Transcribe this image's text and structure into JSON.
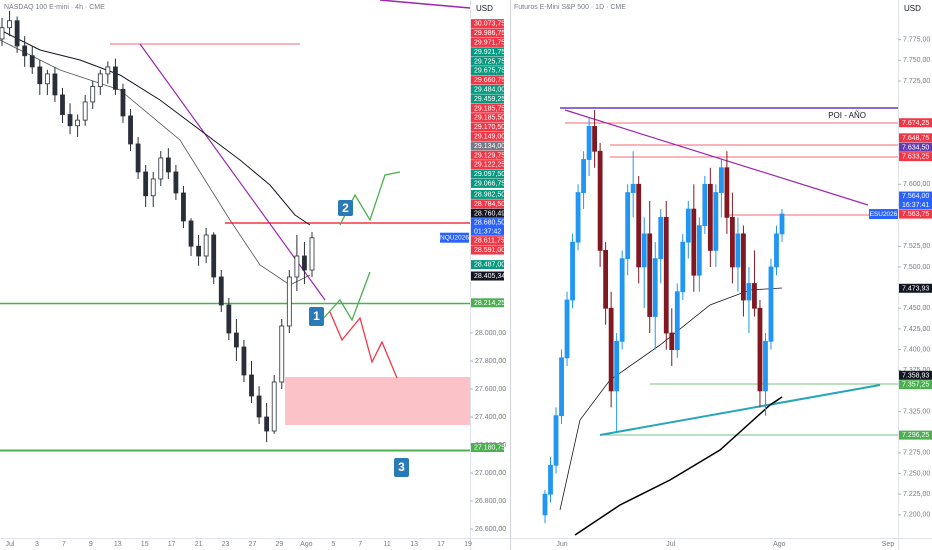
{
  "panels": [
    {
      "header": "NASDAQ 100 E-mini · 4h · CME",
      "currency": "USD",
      "ylim": [
        26536,
        30378
      ],
      "yticks": [
        {
          "value": 28000,
          "label": "28.000,00"
        },
        {
          "value": 27800,
          "label": "27.800,00"
        },
        {
          "value": 27600,
          "label": "27.600,00"
        },
        {
          "value": 27400,
          "label": "27.400,00"
        },
        {
          "value": 27200,
          "label": "27.200,00"
        },
        {
          "value": 27000,
          "label": "27.000,00"
        },
        {
          "value": 26800,
          "label": "26.800,00"
        },
        {
          "value": 26600,
          "label": "26.600,00"
        }
      ],
      "dates": [
        "Jul",
        "3",
        "7",
        "9",
        "13",
        "15",
        "17",
        "21",
        "23",
        "27",
        "29",
        "Ago",
        "5",
        "7",
        "11",
        "13",
        "17",
        "19"
      ],
      "candles": [
        [
          30100,
          30250,
          30050,
          30180
        ],
        [
          30180,
          30300,
          30120,
          30230
        ],
        [
          30230,
          30260,
          30000,
          30050
        ],
        [
          30050,
          30120,
          29900,
          29980
        ],
        [
          29980,
          30050,
          29850,
          29900
        ],
        [
          29900,
          29950,
          29700,
          29780
        ],
        [
          29780,
          29880,
          29700,
          29850
        ],
        [
          29850,
          29900,
          29650,
          29700
        ],
        [
          29700,
          29750,
          29500,
          29560
        ],
        [
          29560,
          29640,
          29420,
          29480
        ],
        [
          29480,
          29560,
          29400,
          29520
        ],
        [
          29520,
          29700,
          29480,
          29650
        ],
        [
          29650,
          29800,
          29600,
          29760
        ],
        [
          29760,
          29880,
          29700,
          29850
        ],
        [
          29850,
          29940,
          29780,
          29900
        ],
        [
          29900,
          29960,
          29700,
          29740
        ],
        [
          29740,
          29780,
          29500,
          29550
        ],
        [
          29550,
          29600,
          29300,
          29350
        ],
        [
          29350,
          29400,
          29100,
          29150
        ],
        [
          29150,
          29200,
          28900,
          28980
        ],
        [
          28980,
          29150,
          28900,
          29100
        ],
        [
          29100,
          29300,
          29050,
          29250
        ],
        [
          29250,
          29320,
          29100,
          29150
        ],
        [
          29150,
          29200,
          28950,
          29000
        ],
        [
          29000,
          29050,
          28750,
          28800
        ],
        [
          28800,
          28820,
          28550,
          28620
        ],
        [
          28620,
          28700,
          28480,
          28550
        ],
        [
          28550,
          28750,
          28500,
          28700
        ],
        [
          28700,
          28720,
          28350,
          28400
        ],
        [
          28400,
          28450,
          28150,
          28200
        ],
        [
          28200,
          28250,
          27950,
          28000
        ],
        [
          28000,
          28100,
          27800,
          27900
        ],
        [
          27900,
          27950,
          27650,
          27700
        ],
        [
          27700,
          27800,
          27500,
          27550
        ],
        [
          27550,
          27620,
          27350,
          27400
        ],
        [
          27400,
          27500,
          27220,
          27300
        ],
        [
          27300,
          27700,
          27280,
          27650
        ],
        [
          27650,
          28100,
          27600,
          28050
        ],
        [
          28050,
          28450,
          28000,
          28400
        ],
        [
          28400,
          28700,
          28300,
          28550
        ],
        [
          28550,
          28650,
          28350,
          28450
        ],
        [
          28450,
          28720,
          28400,
          28680
        ]
      ],
      "up_color": "#2a2e39",
      "down_color": "#2a2e39",
      "price_labels": [
        {
          "value": 30073.75,
          "label": "30.073,75",
          "color": "#f23645"
        },
        {
          "value": 29986.75,
          "label": "29.986,75",
          "color": "#f23645"
        },
        {
          "value": 29971.75,
          "label": "29.971,75",
          "color": "#f23645"
        },
        {
          "value": 29921.75,
          "label": "29.921,75",
          "color": "#089981"
        },
        {
          "value": 29725.75,
          "label": "29.725,75",
          "color": "#089981"
        },
        {
          "value": 29675.75,
          "label": "29.675,75",
          "color": "#089981"
        },
        {
          "value": 29660.75,
          "label": "29.660,75",
          "color": "#f23645"
        },
        {
          "value": 29484,
          "label": "29.484,00",
          "color": "#089981"
        },
        {
          "value": 29459.25,
          "label": "29.459,25",
          "color": "#089981"
        },
        {
          "value": 29185.75,
          "label": "29.185,75",
          "color": "#f23645"
        },
        {
          "value": 29185.5,
          "label": "29.185,50",
          "color": "#f23645"
        },
        {
          "value": 29170.5,
          "label": "29.170,50",
          "color": "#f23645"
        },
        {
          "value": 29149,
          "label": "29.149,00",
          "color": "#f23645"
        },
        {
          "value": 29134,
          "label": "29.134,00",
          "color": "#787b86"
        },
        {
          "value": 29129.75,
          "label": "29.129,75",
          "color": "#f23645"
        },
        {
          "value": 29122.25,
          "label": "29.122,25",
          "color": "#f23645"
        },
        {
          "value": 29097.5,
          "label": "29.097,50",
          "color": "#089981"
        },
        {
          "value": 29066.75,
          "label": "29.066,75",
          "color": "#089981"
        },
        {
          "value": 28982.5,
          "label": "28.982,50",
          "color": "#089981"
        },
        {
          "value": 28784.5,
          "label": "28.784,50",
          "color": "#f23645"
        },
        {
          "value": 28760.49,
          "label": "28.760,49",
          "color": "#131722"
        },
        {
          "value": 28680.5,
          "label": "28.680,50",
          "color": "#2962ff",
          "name": "NQU2026",
          "timer": "01:37:42"
        },
        {
          "value": 28611.75,
          "label": "28.611,75",
          "color": "#f23645"
        },
        {
          "value": 28591,
          "label": "28.591,00",
          "color": "#f23645"
        },
        {
          "value": 28487,
          "label": "28.487,00",
          "color": "#089981"
        },
        {
          "value": 28405.34,
          "label": "28.405,34",
          "color": "#131722"
        },
        {
          "value": 28214.25,
          "label": "28.214,25",
          "color": "#4caf50"
        },
        {
          "value": 27180.75,
          "label": "27.180,75",
          "color": "#4caf50"
        }
      ],
      "annotations": [
        "2",
        "1",
        "3"
      ]
    },
    {
      "header": "Futuros E-Mini S&P 500 · 1D · CME",
      "currency": "USD",
      "ylim": [
        7172,
        7823
      ],
      "yticks": [
        {
          "value": 7775,
          "label": "7.775,00"
        },
        {
          "value": 7750,
          "label": "7.750,00"
        },
        {
          "value": 7725,
          "label": "7.725,00"
        },
        {
          "value": 7600,
          "label": "7.600,00"
        },
        {
          "value": 7575,
          "label": "7.575,00"
        },
        {
          "value": 7525,
          "label": "7.525,00"
        },
        {
          "value": 7500,
          "label": "7.500,00"
        },
        {
          "value": 7450,
          "label": "7.450,00"
        },
        {
          "value": 7425,
          "label": "7.425,00"
        },
        {
          "value": 7400,
          "label": "7.400,00"
        },
        {
          "value": 7375,
          "label": "7.375,00"
        },
        {
          "value": 7325,
          "label": "7.325,00"
        },
        {
          "value": 7275,
          "label": "7.275,00"
        },
        {
          "value": 7250,
          "label": "7.250,00"
        },
        {
          "value": 7225,
          "label": "7.225,00"
        },
        {
          "value": 7200,
          "label": "7.200,00"
        }
      ],
      "dates": [
        "Jun",
        "Jul",
        "Ago",
        "Sep"
      ],
      "candles": [
        [
          7200,
          7230,
          7190,
          7225
        ],
        [
          7225,
          7270,
          7215,
          7260
        ],
        [
          7260,
          7330,
          7250,
          7320
        ],
        [
          7320,
          7400,
          7310,
          7390
        ],
        [
          7390,
          7470,
          7380,
          7460
        ],
        [
          7460,
          7540,
          7450,
          7530
        ],
        [
          7530,
          7600,
          7520,
          7590
        ],
        [
          7590,
          7640,
          7570,
          7630
        ],
        [
          7630,
          7680,
          7610,
          7670
        ],
        [
          7670,
          7690,
          7620,
          7640
        ],
        [
          7640,
          7650,
          7500,
          7520
        ],
        [
          7520,
          7530,
          7430,
          7450
        ],
        [
          7450,
          7470,
          7330,
          7350
        ],
        [
          7350,
          7420,
          7300,
          7410
        ],
        [
          7410,
          7520,
          7400,
          7510
        ],
        [
          7510,
          7600,
          7490,
          7590
        ],
        [
          7590,
          7640,
          7560,
          7600
        ],
        [
          7600,
          7610,
          7480,
          7500
        ],
        [
          7500,
          7560,
          7450,
          7540
        ],
        [
          7540,
          7580,
          7420,
          7440
        ],
        [
          7440,
          7530,
          7400,
          7510
        ],
        [
          7510,
          7570,
          7480,
          7560
        ],
        [
          7560,
          7580,
          7400,
          7420
        ],
        [
          7420,
          7450,
          7380,
          7400
        ],
        [
          7400,
          7480,
          7390,
          7470
        ],
        [
          7470,
          7540,
          7460,
          7530
        ],
        [
          7530,
          7580,
          7510,
          7570
        ],
        [
          7570,
          7600,
          7470,
          7490
        ],
        [
          7490,
          7560,
          7470,
          7550
        ],
        [
          7550,
          7610,
          7540,
          7600
        ],
        [
          7600,
          7620,
          7500,
          7520
        ],
        [
          7520,
          7600,
          7500,
          7590
        ],
        [
          7590,
          7630,
          7560,
          7620
        ],
        [
          7620,
          7640,
          7540,
          7560
        ],
        [
          7560,
          7590,
          7480,
          7500
        ],
        [
          7500,
          7560,
          7470,
          7540
        ],
        [
          7540,
          7550,
          7440,
          7460
        ],
        [
          7460,
          7500,
          7420,
          7480
        ],
        [
          7480,
          7520,
          7440,
          7450
        ],
        [
          7450,
          7460,
          7330,
          7350
        ],
        [
          7350,
          7420,
          7320,
          7410
        ],
        [
          7410,
          7510,
          7400,
          7500
        ],
        [
          7500,
          7550,
          7490,
          7540
        ],
        [
          7540,
          7570,
          7530,
          7564
        ]
      ],
      "up_color": "#2196f3",
      "down_color": "#801922",
      "price_labels": [
        {
          "value": 7674.25,
          "label": "7.674,25",
          "color": "#f23645"
        },
        {
          "value": 7648.75,
          "label": "7.648,75",
          "color": "#f23645"
        },
        {
          "value": 7634.5,
          "label": "7.634,50",
          "color": "#673ab7",
          "note": "POI - AÑO"
        },
        {
          "value": 7633.25,
          "label": "7.633,25",
          "color": "#f23645"
        },
        {
          "value": 7564,
          "label": "7.564,00",
          "color": "#2962ff",
          "name": "ESU2026",
          "timer": "16:37:41"
        },
        {
          "value": 7563.75,
          "label": "7.563,75",
          "color": "#f23645"
        },
        {
          "value": 7473.93,
          "label": "7.473,93",
          "color": "#131722"
        },
        {
          "value": 7358.93,
          "label": "7.358,93",
          "color": "#131722"
        },
        {
          "value": 7357.25,
          "label": "7.357,25",
          "color": "#4caf50"
        },
        {
          "value": 7296.25,
          "label": "7.296,25",
          "color": "#4caf50"
        }
      ],
      "annotations": []
    }
  ]
}
